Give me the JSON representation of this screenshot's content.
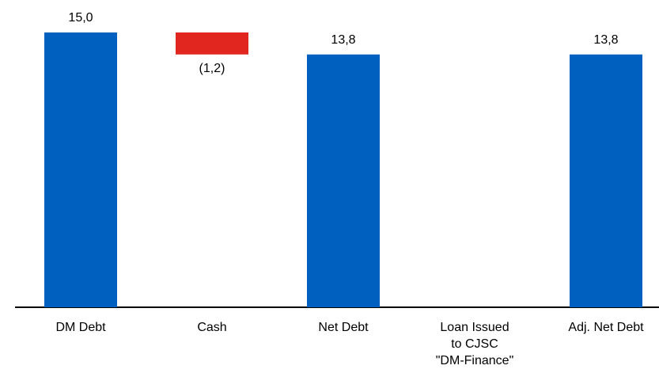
{
  "chart_data": {
    "type": "waterfall",
    "categories": [
      "DM Debt",
      "Cash",
      "Net Debt",
      "Loan Issued\nto CJSC\n\"DM-Finance\"",
      "Adj. Net Debt"
    ],
    "values": [
      15.0,
      -1.2,
      13.8,
      null,
      13.8
    ],
    "value_labels": [
      "15,0",
      "(1,2)",
      "13,8",
      null,
      "13,8"
    ],
    "color": "#0060bf",
    "negative_color": "#e0261e"
  }
}
